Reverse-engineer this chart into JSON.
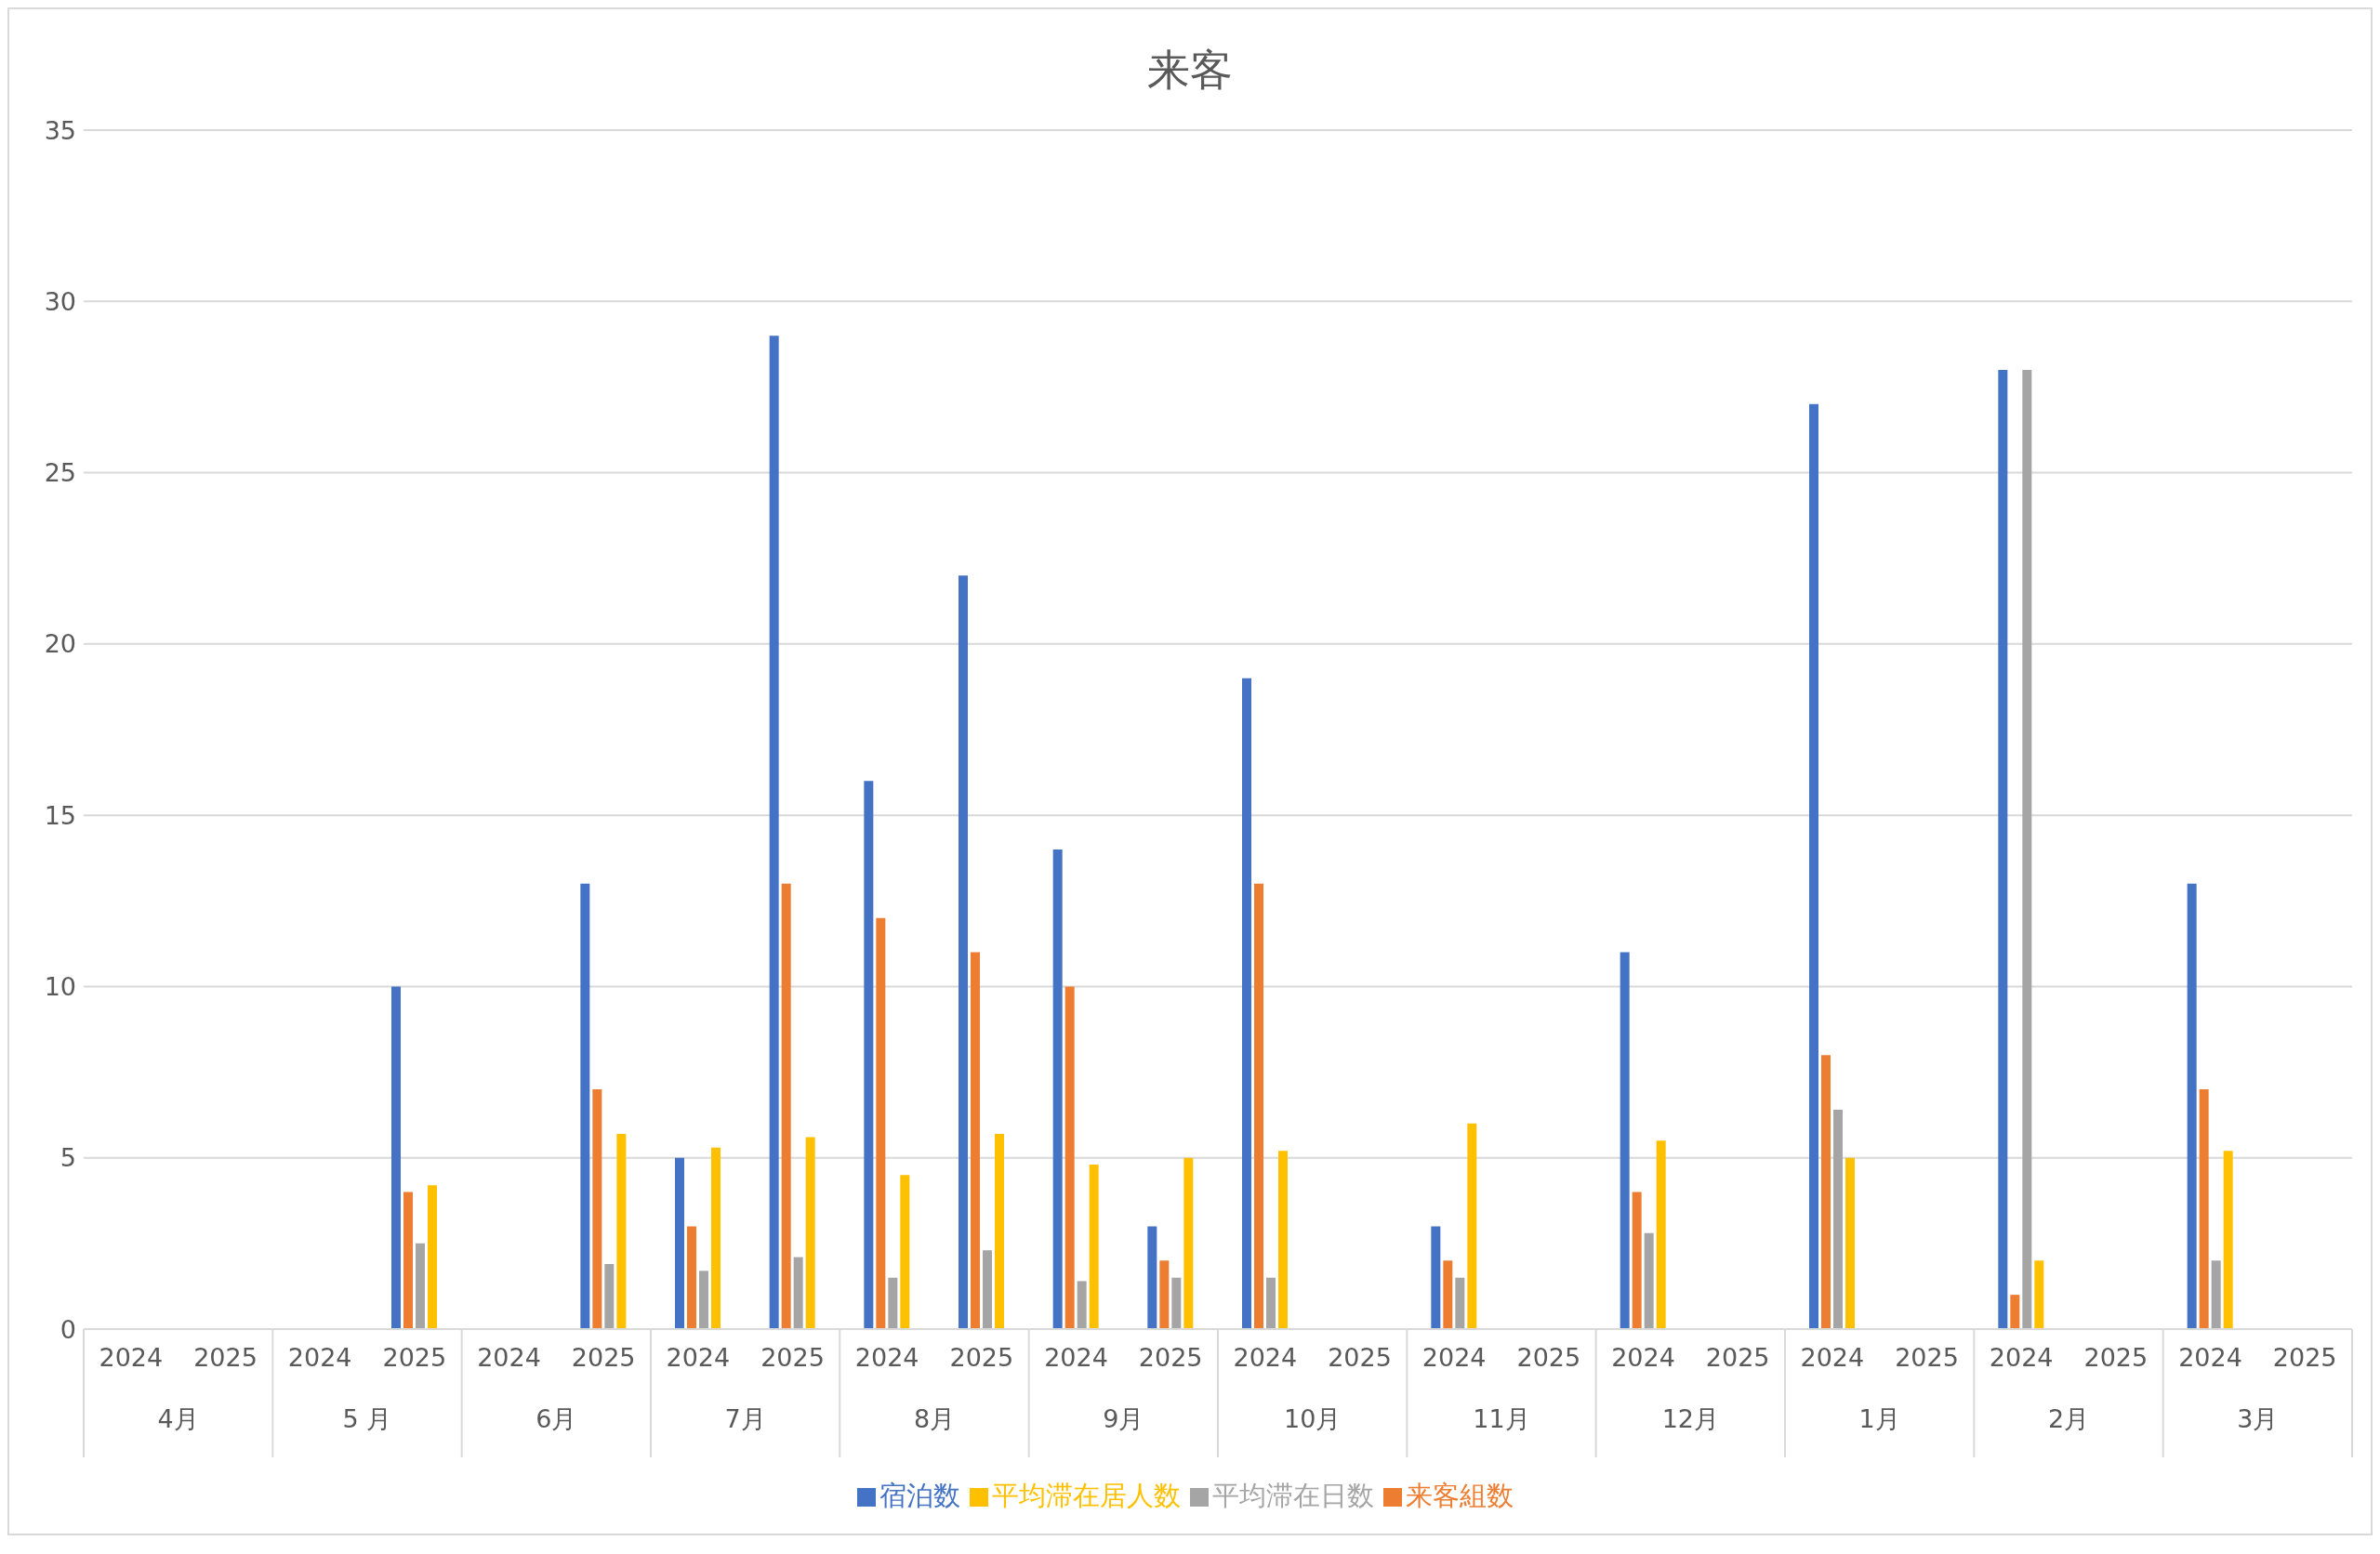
{
  "chart_data": {
    "type": "bar",
    "title": "来客",
    "categories": [
      "2024",
      "2025",
      "2024",
      "2025",
      "2024",
      "2025",
      "2024",
      "2025",
      "2024",
      "2025",
      "2024",
      "2025",
      "2024",
      "2025",
      "2024",
      "2025",
      "2024",
      "2025",
      "2024",
      "2025",
      "2024",
      "2025",
      "2024",
      "2025"
    ],
    "annotations": [
      "4月",
      "5 月",
      "6月",
      "7月",
      "8月",
      "9月",
      "10月",
      "11月",
      "12月",
      "1月",
      "2月",
      "3月"
    ],
    "series": [
      {
        "name": "宿泊数",
        "color": "#4472c4",
        "values": [
          null,
          null,
          null,
          10,
          null,
          13,
          5,
          29,
          16,
          22,
          14,
          3,
          19,
          null,
          3,
          null,
          11,
          null,
          27,
          null,
          28,
          null,
          13,
          null
        ]
      },
      {
        "name": "来客組数",
        "color": "#ed7d31",
        "values": [
          null,
          null,
          null,
          4,
          null,
          7,
          3,
          13,
          12,
          11,
          10,
          2,
          13,
          null,
          2,
          null,
          4,
          null,
          8,
          null,
          1,
          null,
          7,
          null
        ]
      },
      {
        "name": "平均滞在日数",
        "color": "#a5a5a5",
        "values": [
          null,
          null,
          null,
          2.5,
          null,
          1.9,
          1.7,
          2.1,
          1.5,
          2.3,
          1.4,
          1.5,
          1.5,
          null,
          1.5,
          null,
          2.8,
          null,
          6.4,
          null,
          28,
          null,
          2,
          null
        ]
      },
      {
        "name": "平均滞在居人数",
        "color": "#ffc000",
        "values": [
          null,
          null,
          null,
          4.2,
          null,
          5.7,
          5.3,
          5.6,
          4.5,
          5.7,
          4.8,
          5,
          5.2,
          null,
          6,
          null,
          5.5,
          null,
          5,
          null,
          2,
          null,
          5.2,
          null
        ]
      }
    ],
    "ylim": [
      0,
      35
    ],
    "yticks": [
      0,
      5,
      10,
      15,
      20,
      25,
      30,
      35
    ],
    "grid": "y",
    "legend": "bottom"
  }
}
